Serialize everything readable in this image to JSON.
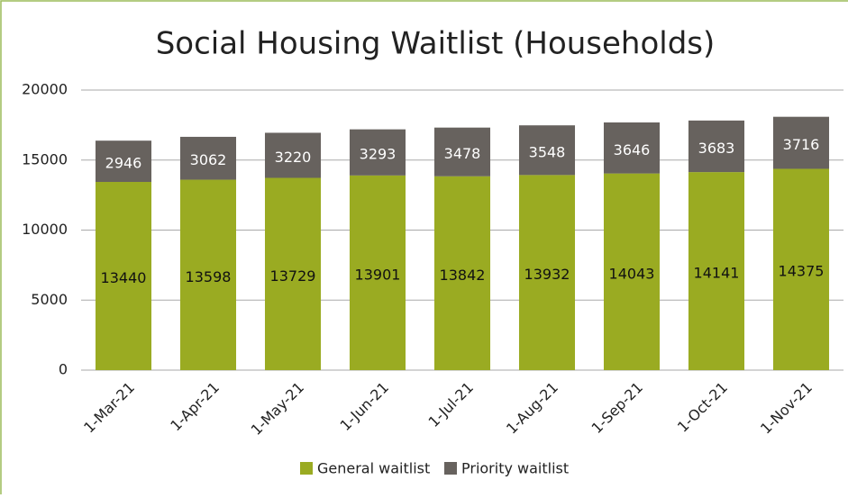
{
  "chart_data": {
    "type": "stacked_bar",
    "title": "Social Housing Waitlist (Households)",
    "categories": [
      "1-Mar-21",
      "1-Apr-21",
      "1-May-21",
      "1-Jun-21",
      "1-Jul-21",
      "1-Aug-21",
      "1-Sep-21",
      "1-Oct-21",
      "1-Nov-21"
    ],
    "series": [
      {
        "name": "General waitlist",
        "color": "#9aab22",
        "values": [
          13440,
          13598,
          13729,
          13901,
          13842,
          13932,
          14043,
          14141,
          14375
        ]
      },
      {
        "name": "Priority waitlist",
        "color": "#67625e",
        "values": [
          2946,
          3062,
          3220,
          3293,
          3478,
          3548,
          3646,
          3683,
          3716
        ]
      }
    ],
    "ylim": [
      0,
      20000
    ],
    "yticks": [
      0,
      5000,
      10000,
      15000,
      20000
    ],
    "grid": true,
    "legend": "bottom"
  }
}
